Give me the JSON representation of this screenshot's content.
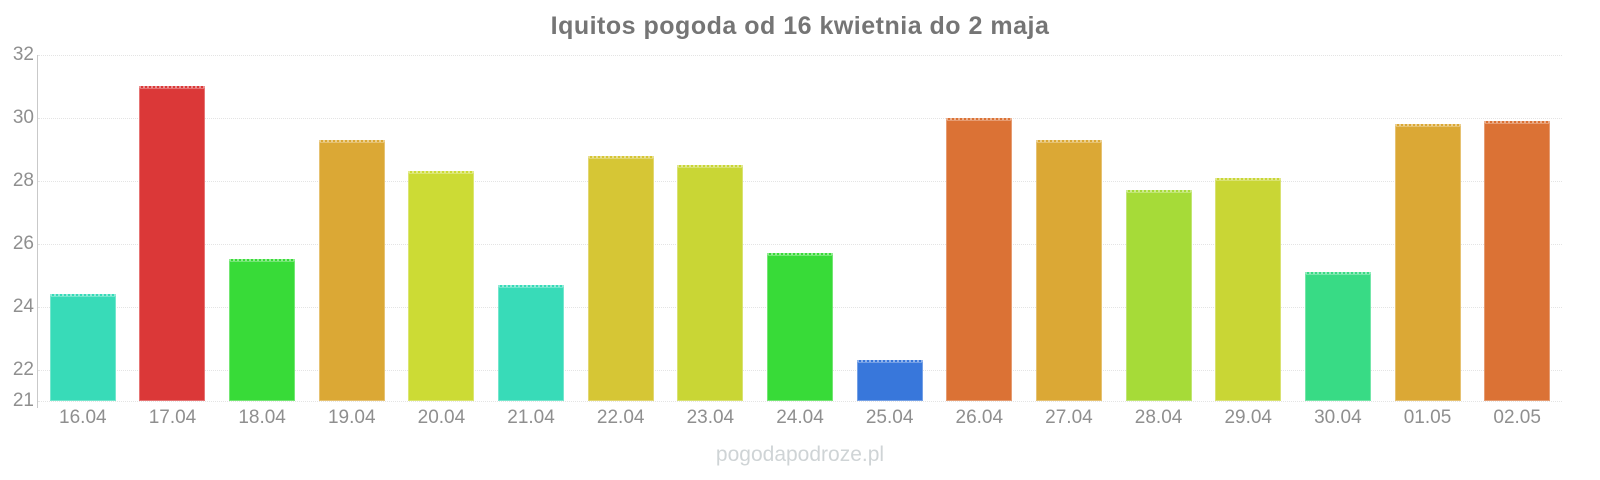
{
  "watermark": "pogodapodroze.pl",
  "chart_data": {
    "type": "bar",
    "title": "Iquitos pogoda od 16 kwietnia do 2 maja",
    "categories": [
      "16.04",
      "17.04",
      "18.04",
      "19.04",
      "20.04",
      "21.04",
      "22.04",
      "23.04",
      "24.04",
      "25.04",
      "26.04",
      "27.04",
      "28.04",
      "29.04",
      "30.04",
      "01.05",
      "02.05"
    ],
    "values": [
      24.4,
      31.0,
      25.5,
      29.3,
      28.3,
      24.7,
      28.8,
      28.5,
      25.7,
      22.3,
      30.0,
      29.3,
      27.7,
      28.1,
      25.1,
      29.8,
      29.9
    ],
    "colors": [
      "#38dbb8",
      "#db3838",
      "#38db38",
      "#dba835",
      "#ccdb35",
      "#38dbb8",
      "#d6c635",
      "#c9d635",
      "#38db38",
      "#3877db",
      "#db7235",
      "#dba835",
      "#a6db38",
      "#c9d635",
      "#38db85",
      "#dba835",
      "#db7235"
    ],
    "xlabel": "",
    "ylabel": "",
    "ylim": [
      21,
      32
    ],
    "yticks": [
      21,
      22,
      24,
      26,
      28,
      30,
      32
    ],
    "grid": "horizontal-dotted",
    "legend": "none"
  }
}
